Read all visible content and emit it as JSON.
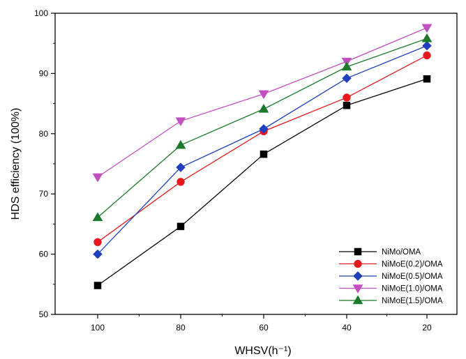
{
  "chart_data": {
    "type": "line",
    "xlabel": "WHSV(h⁻¹)",
    "ylabel": "HDS efficiency (100%)",
    "x": [
      100,
      80,
      60,
      40,
      20
    ],
    "x_tick_labels": [
      "100",
      "80",
      "60",
      "40",
      "20"
    ],
    "x_reversed": true,
    "ylim": [
      50,
      100
    ],
    "y_tick_labels": [
      "50",
      "60",
      "70",
      "80",
      "90",
      "100"
    ],
    "grid": false,
    "legend_position": "bottom-right",
    "series": [
      {
        "name": "NiMo/OMA",
        "marker": "square",
        "color": "#000000",
        "values": [
          54.8,
          64.6,
          76.6,
          84.7,
          89.1
        ]
      },
      {
        "name": "NiMoE(0.2)/OMA",
        "marker": "circle",
        "color": "#e8191c",
        "values": [
          62.0,
          72.0,
          80.4,
          86.0,
          93.0
        ]
      },
      {
        "name": "NiMoE(0.5)/OMA",
        "marker": "diamond",
        "color": "#1f3fbf",
        "values": [
          60.0,
          74.4,
          80.8,
          89.2,
          94.6
        ]
      },
      {
        "name": "NiMoE(1.0)/OMA",
        "marker": "triangle-down",
        "color": "#c24fc2",
        "values": [
          72.8,
          82.1,
          86.6,
          92.0,
          97.6
        ]
      },
      {
        "name": "NiMoE(1.5)/OMA",
        "marker": "triangle-up",
        "color": "#1a7a2a",
        "values": [
          66.1,
          78.1,
          84.1,
          91.1,
          95.8
        ]
      }
    ]
  }
}
